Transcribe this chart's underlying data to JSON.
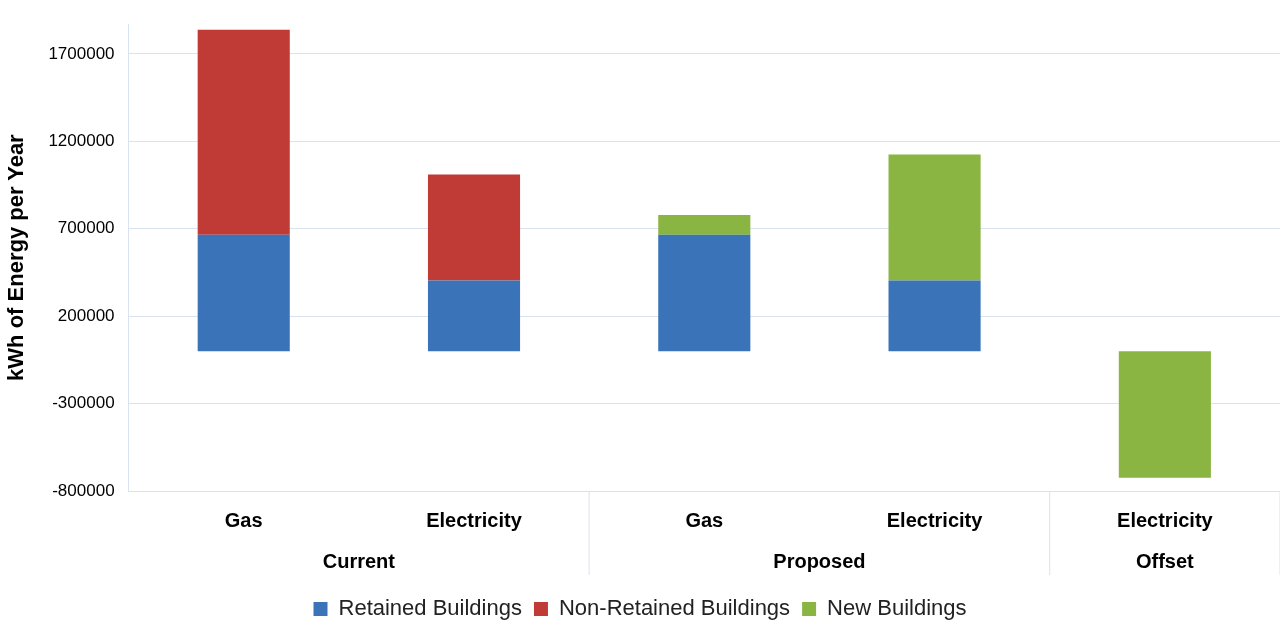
{
  "chart_data": {
    "type": "bar",
    "stacked": true,
    "ylabel": "kWh of Energy per Year",
    "categories": [
      "Gas",
      "Electricity",
      "Gas",
      "Electricity",
      "Electricity"
    ],
    "series": [
      {
        "name": "Retained Buildings",
        "color": "#3a73b8",
        "values": [
          665000,
          404000,
          665000,
          404000,
          null
        ]
      },
      {
        "name": "Non-Retained Buildings",
        "color": "#c03a36",
        "values": [
          1173000,
          607000,
          null,
          null,
          null
        ]
      },
      {
        "name": "New Buildings",
        "color": "#8ab543",
        "values": [
          null,
          null,
          113000,
          720000,
          -724000
        ]
      }
    ],
    "annotations": [
      "Current",
      "Proposed",
      "Offset"
    ],
    "ylim": [
      -800000,
      1870000
    ],
    "yticks": [
      -800000,
      -300000,
      200000,
      700000,
      1200000,
      1700000
    ],
    "grid": "y",
    "legend": "bottom"
  }
}
